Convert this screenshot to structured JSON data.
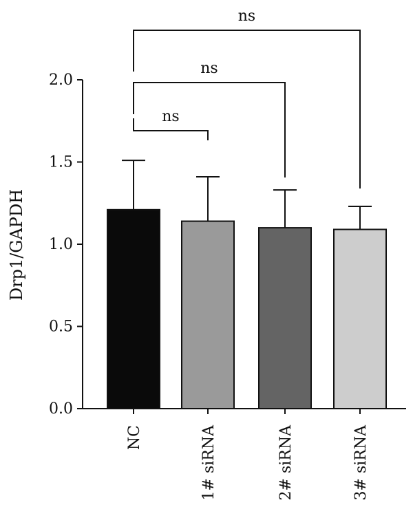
{
  "chart_data": {
    "type": "bar",
    "categories": [
      "NC",
      "1# siRNA",
      "2# siRNA",
      "3# siRNA"
    ],
    "values": [
      1.21,
      1.14,
      1.1,
      1.09
    ],
    "error_upper": [
      1.51,
      1.41,
      1.33,
      1.23
    ],
    "bar_colors": [
      "#0a0a0a",
      "#9a9a9a",
      "#646464",
      "#cdcdcd"
    ],
    "ylabel": "Drp1/GAPDH",
    "ylim": [
      0,
      2.0
    ],
    "yticks": [
      "0.0",
      "0.5",
      "1.0",
      "1.5",
      "2.0"
    ],
    "grid": false,
    "comparisons": [
      {
        "from": "NC",
        "to": "1# siRNA",
        "label": "ns"
      },
      {
        "from": "NC",
        "to": "2# siRNA",
        "label": "ns"
      },
      {
        "from": "NC",
        "to": "3# siRNA",
        "label": "ns"
      }
    ]
  }
}
